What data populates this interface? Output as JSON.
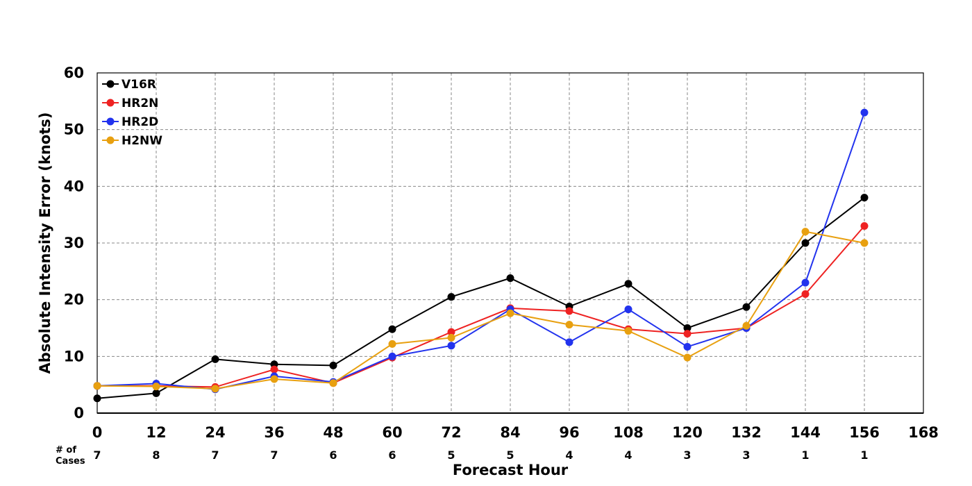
{
  "chart_data": {
    "type": "line",
    "xlabel": "Forecast Hour",
    "ylabel": "Absolute Intensity Error (knots)",
    "xlim": [
      0,
      168
    ],
    "ylim": [
      0,
      60
    ],
    "xticks": [
      0,
      12,
      24,
      36,
      48,
      60,
      72,
      84,
      96,
      108,
      120,
      132,
      144,
      156,
      168
    ],
    "yticks": [
      0,
      10,
      20,
      30,
      40,
      50,
      60
    ],
    "grid": true,
    "legend_position": "top-left",
    "x": [
      0,
      12,
      24,
      36,
      48,
      60,
      72,
      84,
      96,
      108,
      120,
      132,
      144,
      156
    ],
    "series": [
      {
        "name": "V16R",
        "color": "#000000",
        "values": [
          2.6,
          3.5,
          9.5,
          8.6,
          8.4,
          14.8,
          20.5,
          23.8,
          18.8,
          22.8,
          15.0,
          18.7,
          30.0,
          38.0
        ]
      },
      {
        "name": "HR2N",
        "color": "#ee2222",
        "values": [
          4.8,
          4.8,
          4.6,
          7.7,
          5.3,
          9.8,
          14.3,
          18.5,
          18.0,
          14.8,
          14.0,
          15.0,
          21.0,
          33.0
        ]
      },
      {
        "name": "HR2D",
        "color": "#2233ee",
        "values": [
          4.8,
          5.2,
          4.2,
          6.5,
          5.5,
          10.0,
          11.9,
          18.3,
          12.5,
          18.3,
          11.7,
          15.0,
          23.0,
          53.0
        ]
      },
      {
        "name": "H2NW",
        "color": "#e8a010",
        "values": [
          4.8,
          4.7,
          4.3,
          6.0,
          5.3,
          12.2,
          13.3,
          17.6,
          15.6,
          14.5,
          9.8,
          15.4,
          32.0,
          30.0
        ]
      }
    ],
    "cases": {
      "label": "# of Cases",
      "label_lines": [
        "# of",
        "Cases"
      ],
      "values": [
        7,
        8,
        7,
        7,
        6,
        6,
        5,
        5,
        4,
        4,
        3,
        3,
        1,
        1
      ]
    }
  }
}
